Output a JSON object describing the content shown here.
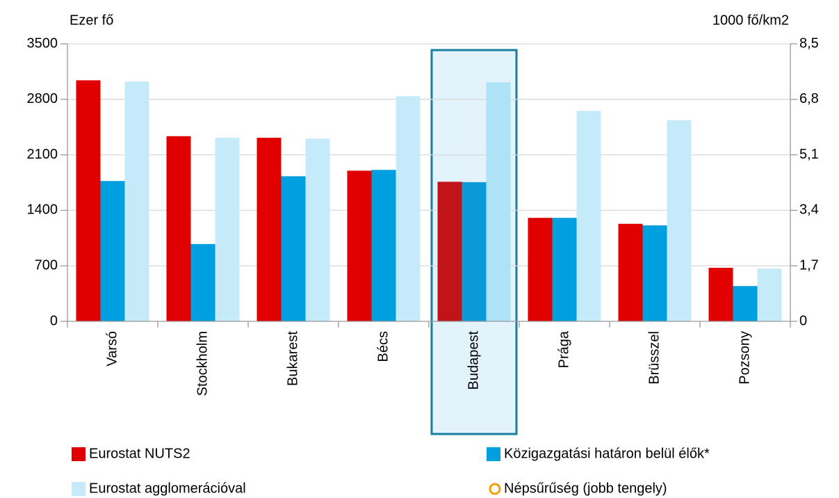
{
  "chart_data": {
    "type": "bar",
    "y_axis_label": "Ezer fő",
    "y2_axis_label": "1000 fő/km2",
    "categories": [
      "Varsó",
      "Stockholm",
      "Bukarest",
      "Bécs",
      "Budapest",
      "Prága",
      "Brüsszel",
      "Pozsony"
    ],
    "series": [
      {
        "name": "Eurostat NUTS2",
        "color": "#e00000",
        "values": [
          3040,
          2335,
          2315,
          1900,
          1760,
          1305,
          1230,
          675
        ]
      },
      {
        "name": "Közigazgatási határon belül élők*",
        "color": "#009fe0",
        "values": [
          1770,
          975,
          1830,
          1910,
          1755,
          1305,
          1210,
          445
        ]
      },
      {
        "name": "Eurostat agglomerációval",
        "color": "#c5eafa",
        "values": [
          3025,
          2315,
          2305,
          2840,
          3015,
          2655,
          2535,
          665
        ]
      },
      {
        "name": "Népsűrűség (jobb tengely)",
        "color": "#f0a000",
        "axis": "y2",
        "marker": "circle-open",
        "values": [
          null,
          null,
          null,
          null,
          null,
          null,
          null,
          null
        ]
      }
    ],
    "ylim": [
      0,
      3500
    ],
    "yticks": [
      0,
      700,
      1400,
      2100,
      2800,
      3500
    ],
    "y2lim": [
      0,
      8.5
    ],
    "y2ticks": [
      0,
      {
        "value": 1.7,
        "label": "1,7"
      },
      {
        "value": 3.4,
        "label": "3,4"
      },
      {
        "value": 5.1,
        "label": "5,1"
      },
      {
        "value": 6.8,
        "label": "6,8"
      },
      {
        "value": 8.5,
        "label": "8,5"
      }
    ],
    "grid": true,
    "highlight_index": 4,
    "highlight_colors": [
      "#c0141a",
      "#0a9ad8",
      "#aee3f7"
    ]
  }
}
